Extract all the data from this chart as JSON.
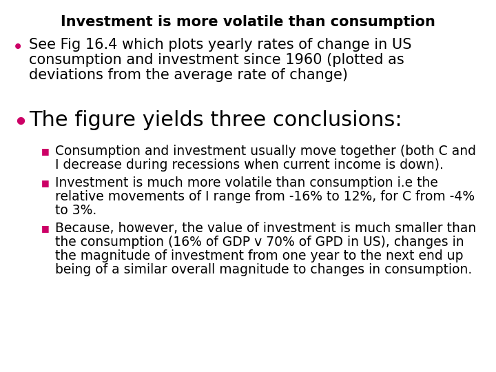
{
  "background_color": "#ffffff",
  "title": "Investment is more volatile than consumption",
  "title_fontsize": 15,
  "title_color": "#000000",
  "bullet1_lines": [
    "See Fig 16.4 which plots yearly rates of change in US",
    "consumption and investment since 1960 (plotted as",
    "deviations from the average rate of change)"
  ],
  "bullet2_text": "The figure yields three conclusions:",
  "bullet2_fontsize": 22,
  "sub_bullet1_lines": [
    "Consumption and investment usually move together (both C and",
    "I decrease during recessions when current income is down)."
  ],
  "sub_bullet2_lines": [
    "Investment is much more volatile than consumption i.e the",
    "relative movements of I range from -16% to 12%, for C from -4%",
    "to 3%."
  ],
  "sub_bullet3_lines": [
    "Because, however, the value of investment is much smaller than",
    "the consumption (16% of GDP v 70% of GPD in US), changes in",
    "the magnitude of investment from one year to the next end up",
    "being of a similar overall magnitude to changes in consumption."
  ],
  "bullet_color": "#cc0066",
  "sub_bullet_color": "#cc0066",
  "text_color": "#000000",
  "main_bullet_fontsize": 15,
  "sub_bullet_fontsize": 13.5
}
